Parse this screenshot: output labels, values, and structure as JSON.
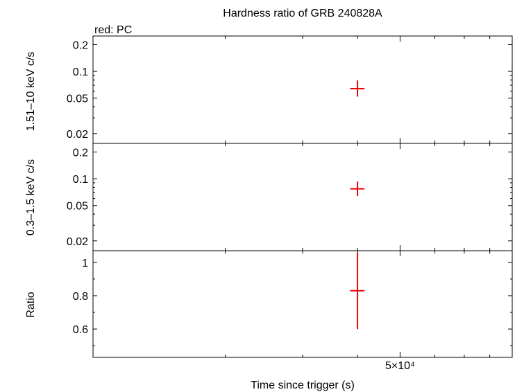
{
  "chart_data": {
    "type": "scatter",
    "title": "Hardness ratio of GRB 240828A",
    "legend_note": "red: PC",
    "xlabel": "Time since trigger (s)",
    "x_tick_labels": [
      "5×10⁴"
    ],
    "x_ticks": [
      50000
    ],
    "xlim": [
      10000,
      90000
    ],
    "x_scale": "log",
    "grid": false,
    "series_color": "#ee0000",
    "panels": [
      {
        "id": "hard",
        "ylabel": "1.51–10 keV c/s",
        "y_scale": "log",
        "ylim": [
          0.0155,
          0.25
        ],
        "y_ticks": [
          0.2,
          0.1,
          0.05,
          0.02
        ],
        "y_tick_labels": [
          "0.2",
          "0.1",
          "0.05",
          "0.02"
        ],
        "points": [
          {
            "x": 40000,
            "x_err": [
              38500,
              41500
            ],
            "y": 0.064,
            "y_err": [
              0.052,
              0.079
            ]
          }
        ]
      },
      {
        "id": "soft",
        "ylabel": "0.3–1.5 keV c/s",
        "y_scale": "log",
        "ylim": [
          0.0155,
          0.25
        ],
        "y_ticks": [
          0.2,
          0.1,
          0.05,
          0.02
        ],
        "y_tick_labels": [
          "0.2",
          "0.1",
          "0.05",
          "0.02"
        ],
        "points": [
          {
            "x": 40000,
            "x_err": [
              38500,
              41500
            ],
            "y": 0.077,
            "y_err": [
              0.064,
              0.093
            ]
          }
        ]
      },
      {
        "id": "ratio",
        "ylabel": "Ratio",
        "y_scale": "linear",
        "ylim": [
          0.43,
          1.07
        ],
        "y_ticks": [
          1.0,
          0.8,
          0.6
        ],
        "y_tick_labels": [
          "1",
          "0.8",
          "0.6"
        ],
        "points": [
          {
            "x": 40000,
            "x_err": [
              38500,
              41500
            ],
            "y": 0.83,
            "y_err": [
              0.6,
              1.06
            ]
          }
        ]
      }
    ]
  }
}
